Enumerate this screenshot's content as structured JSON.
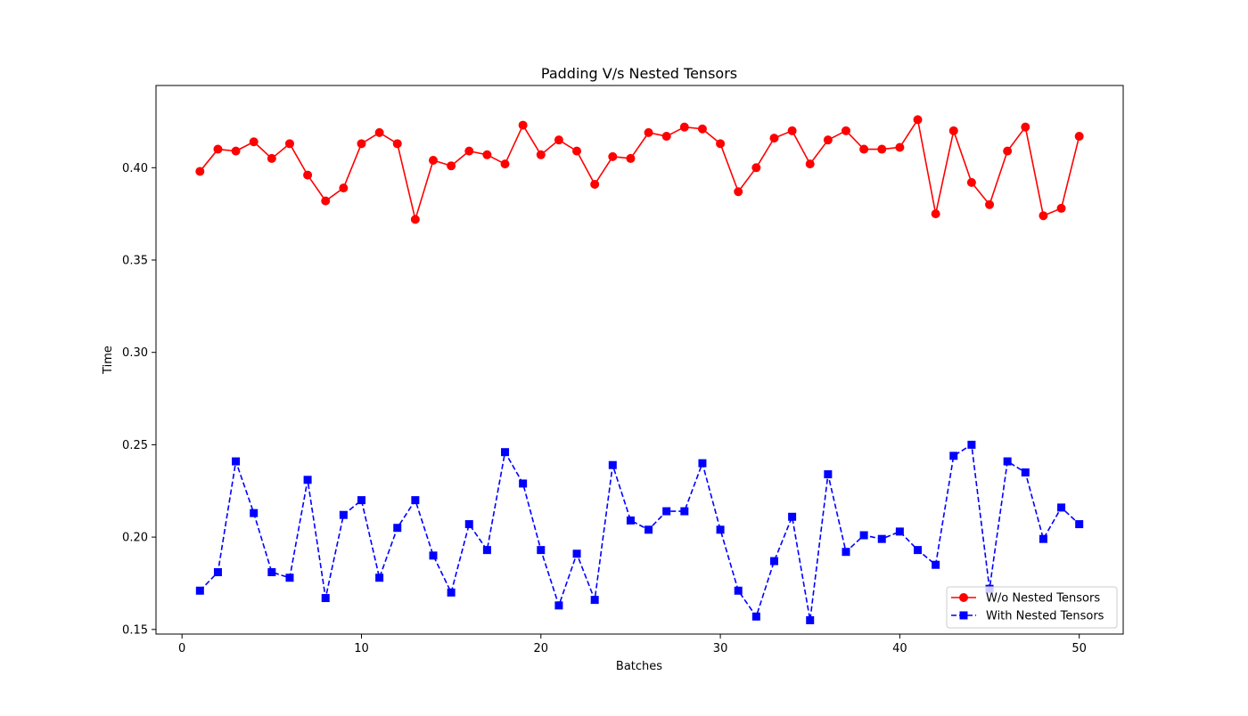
{
  "chart_data": {
    "type": "line",
    "title": "Padding V/s Nested Tensors",
    "xlabel": "Batches",
    "ylabel": "Time",
    "xlim": [
      -1.45,
      52.45
    ],
    "ylim": [
      0.1475,
      0.4445
    ],
    "xticks": [
      0,
      10,
      20,
      30,
      40,
      50
    ],
    "xtick_labels": [
      "0",
      "10",
      "20",
      "30",
      "40",
      "50"
    ],
    "yticks": [
      0.15,
      0.2,
      0.25,
      0.3,
      0.35,
      0.4
    ],
    "ytick_labels": [
      "0.15",
      "0.20",
      "0.25",
      "0.30",
      "0.35",
      "0.40"
    ],
    "grid": false,
    "legend_position": "lower-right",
    "x": [
      1,
      2,
      3,
      4,
      5,
      6,
      7,
      8,
      9,
      10,
      11,
      12,
      13,
      14,
      15,
      16,
      17,
      18,
      19,
      20,
      21,
      22,
      23,
      24,
      25,
      26,
      27,
      28,
      29,
      30,
      31,
      32,
      33,
      34,
      35,
      36,
      37,
      38,
      39,
      40,
      41,
      42,
      43,
      44,
      45,
      46,
      47,
      48,
      49,
      50
    ],
    "series": [
      {
        "name": "W/o Nested Tensors",
        "color": "#ff0000",
        "line_style": "solid",
        "marker": "circle",
        "values": [
          0.398,
          0.41,
          0.409,
          0.414,
          0.405,
          0.413,
          0.396,
          0.382,
          0.389,
          0.413,
          0.419,
          0.413,
          0.372,
          0.404,
          0.401,
          0.409,
          0.407,
          0.402,
          0.423,
          0.407,
          0.415,
          0.409,
          0.391,
          0.406,
          0.405,
          0.419,
          0.417,
          0.422,
          0.421,
          0.413,
          0.387,
          0.4,
          0.416,
          0.42,
          0.402,
          0.415,
          0.42,
          0.41,
          0.41,
          0.411,
          0.426,
          0.375,
          0.42,
          0.392,
          0.38,
          0.409,
          0.422,
          0.374,
          0.378,
          0.417
        ]
      },
      {
        "name": "With Nested Tensors",
        "color": "#0000ff",
        "line_style": "dashed",
        "marker": "square",
        "values": [
          0.171,
          0.181,
          0.241,
          0.213,
          0.181,
          0.178,
          0.231,
          0.167,
          0.212,
          0.22,
          0.178,
          0.205,
          0.22,
          0.19,
          0.17,
          0.207,
          0.193,
          0.246,
          0.229,
          0.193,
          0.163,
          0.191,
          0.166,
          0.239,
          0.209,
          0.204,
          0.214,
          0.214,
          0.24,
          0.204,
          0.171,
          0.157,
          0.187,
          0.211,
          0.155,
          0.234,
          0.192,
          0.201,
          0.199,
          0.203,
          0.193,
          0.185,
          0.244,
          0.25,
          0.172,
          0.241,
          0.235,
          0.199,
          0.216,
          0.207
        ]
      }
    ]
  }
}
